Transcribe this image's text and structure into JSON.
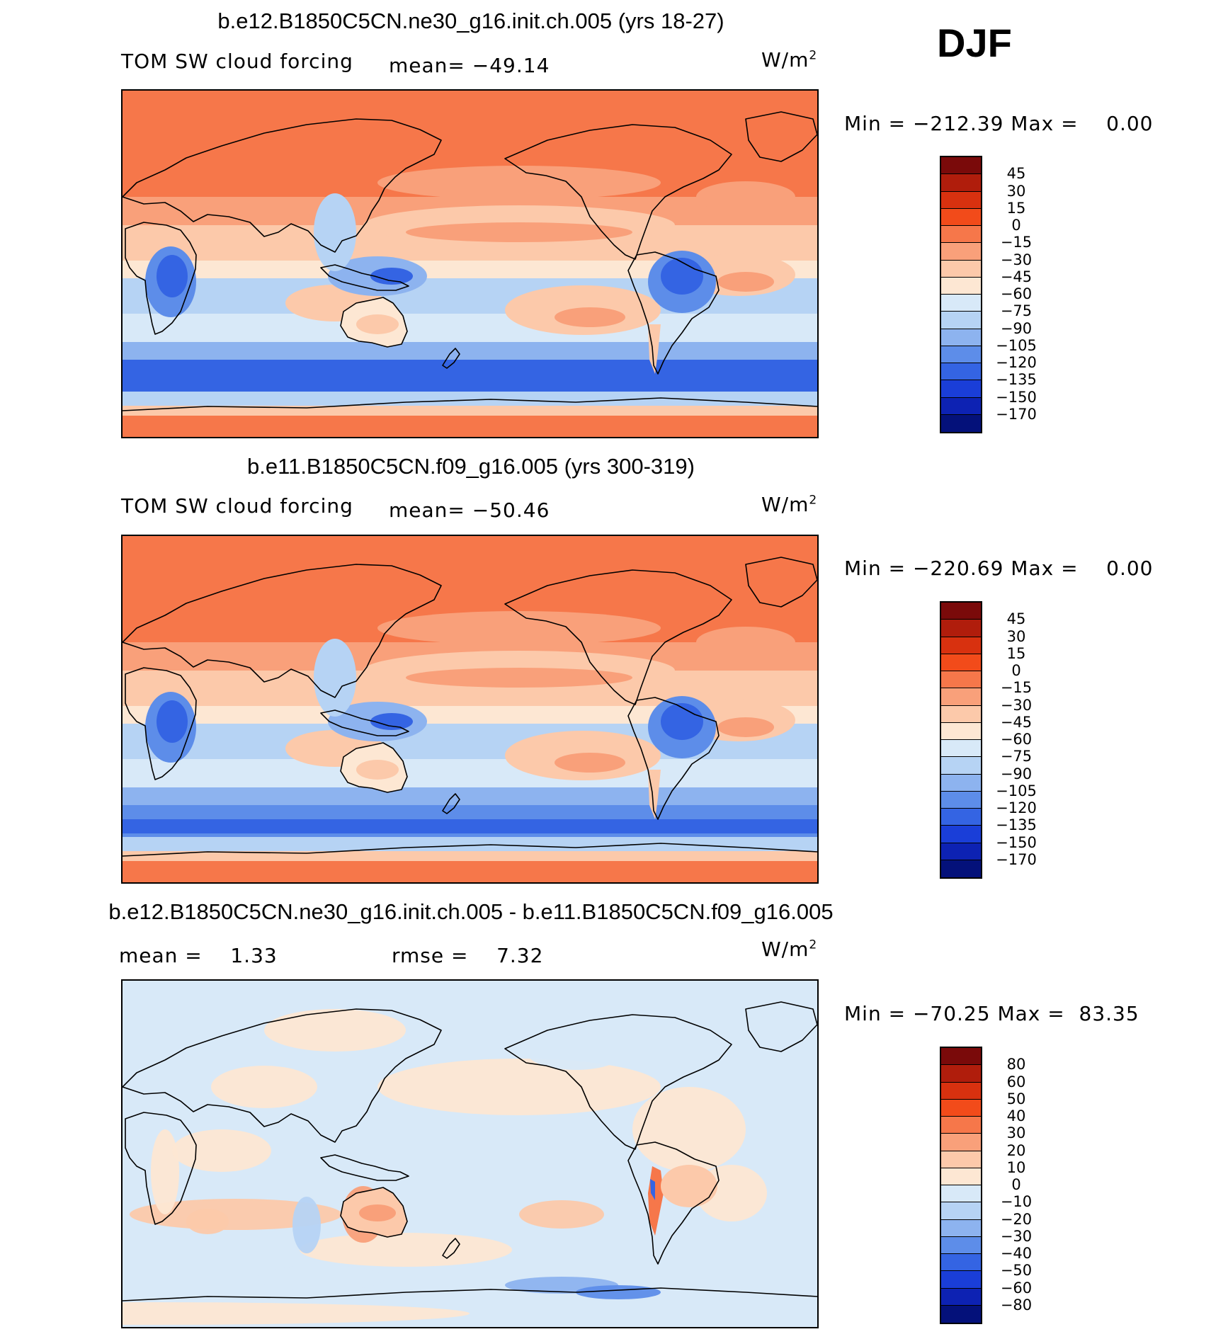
{
  "season": "DJF",
  "panels": [
    {
      "title": "b.e12.B1850C5CN.ne30_g16.init.ch.005 (yrs 18-27)",
      "left_label": "TOM SW cloud forcing",
      "stat_label": "mean= −49.14",
      "stat2_label": "",
      "units": "W/m",
      "units_sup": "2",
      "minmax": "Min = −212.39 Max =    0.00",
      "variant": "a"
    },
    {
      "title": "b.e11.B1850C5CN.f09_g16.005 (yrs 300-319)",
      "left_label": "TOM SW cloud forcing",
      "stat_label": "mean= −50.46",
      "stat2_label": "",
      "units": "W/m",
      "units_sup": "2",
      "minmax": "Min = −220.69 Max =    0.00",
      "variant": "b"
    },
    {
      "title": "b.e12.B1850C5CN.ne30_g16.init.ch.005 - b.e11.B1850C5CN.f09_g16.005",
      "left_label": "mean =    1.33",
      "stat_label": "rmse =    7.32",
      "stat2_label": "",
      "units": "W/m",
      "units_sup": "2",
      "minmax": "Min = −70.25 Max =  83.35",
      "variant": "diff"
    }
  ],
  "chart_data": [
    {
      "type": "heatmap",
      "title": "b.e12.B1850C5CN.ne30_g16.init.ch.005 (yrs 18-27)",
      "variable": "TOM SW cloud forcing",
      "season": "DJF",
      "units": "W/m2",
      "mean": -49.14,
      "min": -212.39,
      "max": 0.0,
      "colorbar_levels": [
        45,
        30,
        15,
        0,
        -15,
        -30,
        -45,
        -60,
        -75,
        -90,
        -105,
        -120,
        -135,
        -150,
        -170
      ],
      "colorbar_colors": [
        "#7a0a0a",
        "#b01d0c",
        "#d8310f",
        "#f24b1a",
        "#f6774a",
        "#f9a07a",
        "#fcc9aa",
        "#fde7d3",
        "#d8e9f8",
        "#b6d3f4",
        "#8db3ef",
        "#5d8de9",
        "#3464e3",
        "#1a3ed8",
        "#0d22b3",
        "#04117a"
      ]
    },
    {
      "type": "heatmap",
      "title": "b.e11.B1850C5CN.f09_g16.005 (yrs 300-319)",
      "variable": "TOM SW cloud forcing",
      "season": "DJF",
      "units": "W/m2",
      "mean": -50.46,
      "min": -220.69,
      "max": 0.0,
      "colorbar_levels": [
        45,
        30,
        15,
        0,
        -15,
        -30,
        -45,
        -60,
        -75,
        -90,
        -105,
        -120,
        -135,
        -150,
        -170
      ],
      "colorbar_colors": [
        "#7a0a0a",
        "#b01d0c",
        "#d8310f",
        "#f24b1a",
        "#f6774a",
        "#f9a07a",
        "#fcc9aa",
        "#fde7d3",
        "#d8e9f8",
        "#b6d3f4",
        "#8db3ef",
        "#5d8de9",
        "#3464e3",
        "#1a3ed8",
        "#0d22b3",
        "#04117a"
      ]
    },
    {
      "type": "heatmap",
      "title": "b.e12.B1850C5CN.ne30_g16.init.ch.005 - b.e11.B1850C5CN.f09_g16.005",
      "season": "DJF",
      "units": "W/m2",
      "mean": 1.33,
      "rmse": 7.32,
      "min": -70.25,
      "max": 83.35,
      "colorbar_levels": [
        80,
        60,
        50,
        40,
        30,
        20,
        10,
        0,
        -10,
        -20,
        -30,
        -40,
        -50,
        -60,
        -80
      ],
      "colorbar_colors": [
        "#7a0a0a",
        "#b01d0c",
        "#d8310f",
        "#f24b1a",
        "#f6774a",
        "#f9a07a",
        "#fcc9aa",
        "#fde7d3",
        "#d8e9f8",
        "#b6d3f4",
        "#8db3ef",
        "#5d8de9",
        "#3464e3",
        "#1a3ed8",
        "#0d22b3",
        "#04117a"
      ]
    }
  ]
}
